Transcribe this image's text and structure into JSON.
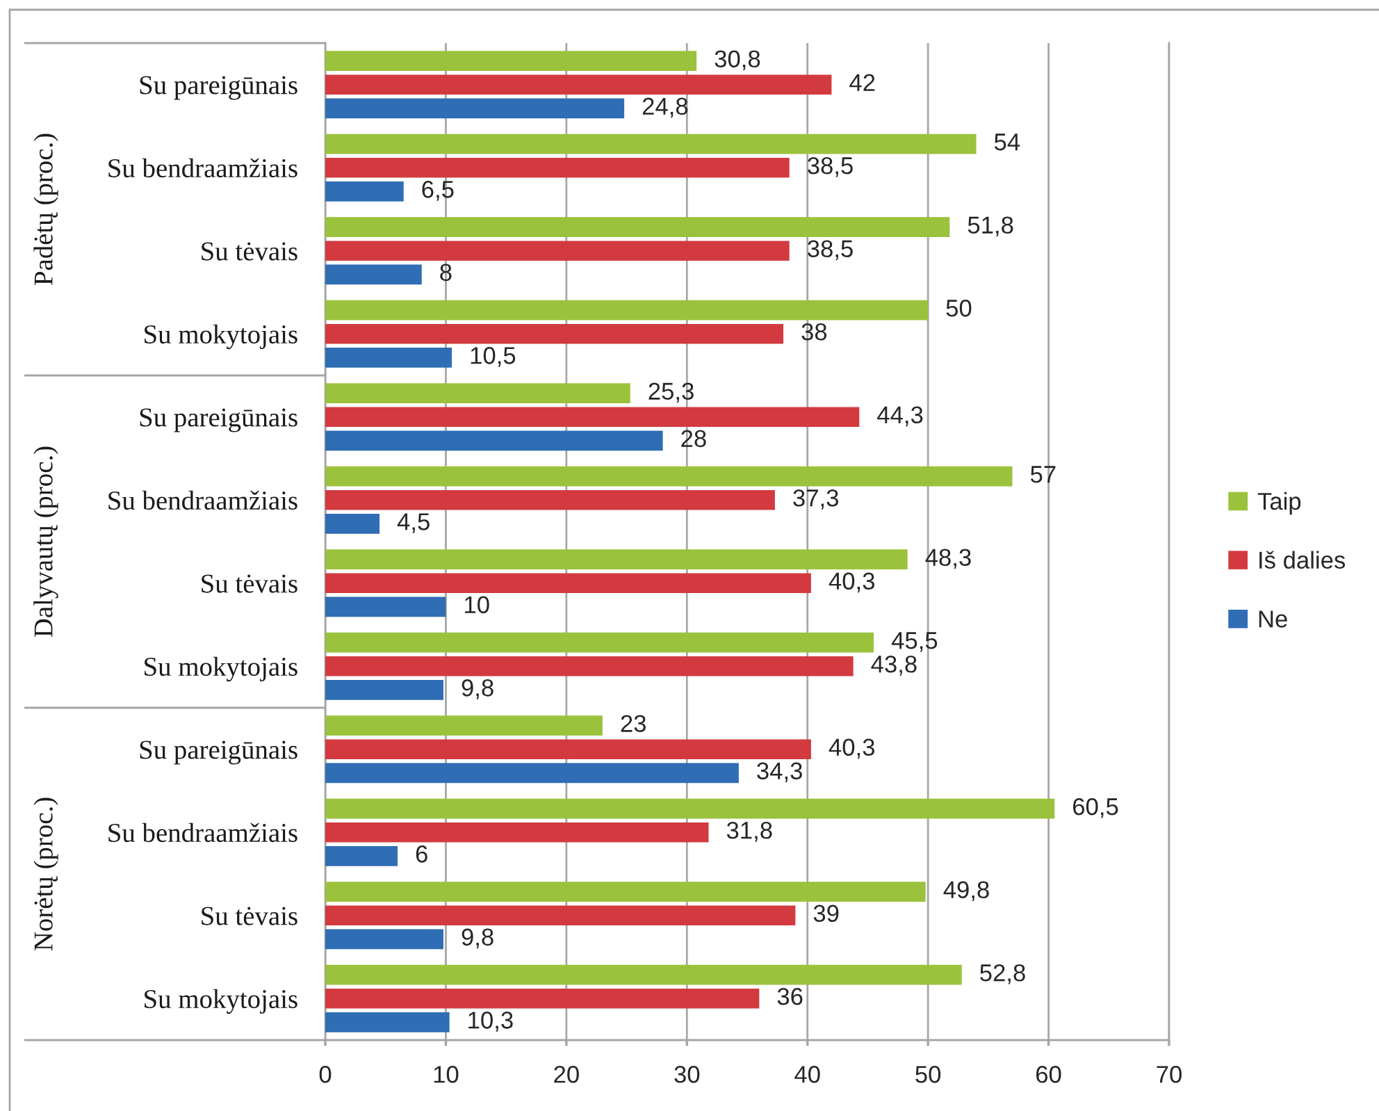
{
  "chart_data": {
    "type": "bar",
    "orientation": "horizontal",
    "categories": [
      "Su pareigūnais",
      "Su bendraamžiais",
      "Su tėvais",
      "Su mokytojais",
      "Su pareigūnais",
      "Su bendraamžiais",
      "Su tėvais",
      "Su mokytojais",
      "Su pareigūnais",
      "Su bendraamžiais",
      "Su tėvais",
      "Su mokytojais"
    ],
    "annotations": [
      "Padėtų (proc.)",
      "Dalyvautų (proc.)",
      "Norėtų (proc.)"
    ],
    "series": [
      {
        "name": "Taip",
        "color": "#9bc23c",
        "values": [
          30.8,
          54,
          51.8,
          50,
          25.3,
          57,
          48.3,
          45.5,
          23,
          60.5,
          49.8,
          52.8
        ],
        "value_labels": [
          "30,8",
          "54",
          "51,8",
          "50",
          "25,3",
          "57",
          "48,3",
          "45,5",
          "23",
          "60,5",
          "49,8",
          "52,8"
        ]
      },
      {
        "name": "Iš dalies",
        "color": "#d23a3f",
        "values": [
          42,
          38.5,
          38.5,
          38,
          44.3,
          37.3,
          40.3,
          43.8,
          40.3,
          31.8,
          39,
          36
        ],
        "value_labels": [
          "42",
          "38,5",
          "38,5",
          "38",
          "44,3",
          "37,3",
          "40,3",
          "43,8",
          "40,3",
          "31,8",
          "39",
          "36"
        ]
      },
      {
        "name": "Ne",
        "color": "#2f6db5",
        "values": [
          24.8,
          6.5,
          8,
          10.5,
          28,
          4.5,
          10,
          9.8,
          34.3,
          6,
          9.8,
          10.3
        ],
        "value_labels": [
          "24,8",
          "6,5",
          "8",
          "10,5",
          "28",
          "4,5",
          "10",
          "9,8",
          "34,3",
          "6",
          "9,8",
          "10,3"
        ]
      }
    ],
    "xlim": [
      0,
      70
    ],
    "xticks": [
      0,
      10,
      20,
      30,
      40,
      50,
      60,
      70
    ],
    "grid": "x",
    "legend": "right"
  }
}
